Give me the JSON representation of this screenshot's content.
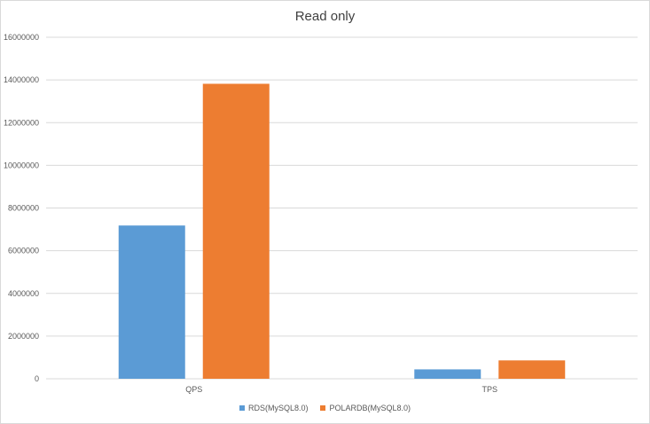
{
  "chart_data": {
    "type": "bar",
    "title": "Read only",
    "categories": [
      "QPS",
      "TPS"
    ],
    "series": [
      {
        "name": "RDS(MySQL8.0)",
        "color": "#5b9bd5",
        "values": [
          7180000,
          440000
        ]
      },
      {
        "name": "POLARDB(MySQL8.0)",
        "color": "#ed7d31",
        "values": [
          13820000,
          860000
        ]
      }
    ],
    "ylim": [
      0,
      16000000
    ],
    "yticks": [
      "0",
      "2000000",
      "4000000",
      "6000000",
      "8000000",
      "10000000",
      "12000000",
      "14000000",
      "16000000"
    ],
    "grid": true,
    "legend_position": "bottom"
  }
}
